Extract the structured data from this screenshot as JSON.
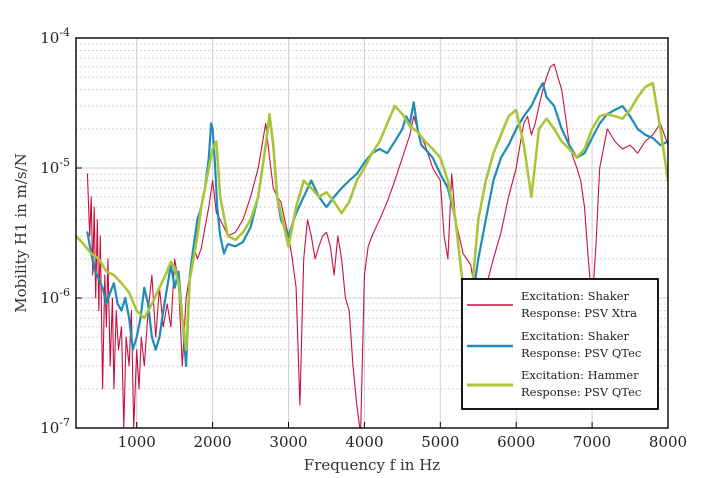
{
  "chart_data": {
    "type": "line",
    "xlabel": "Frequency f in Hz",
    "ylabel": "Mobility H1 in m/s/N",
    "xlim": [
      200,
      8000
    ],
    "ylim": [
      1e-07,
      0.0001
    ],
    "y_scale": "log",
    "grid": true,
    "legend_placement": "bottom-right",
    "x_ticks": [
      1000,
      2000,
      3000,
      4000,
      5000,
      6000,
      7000,
      8000
    ],
    "y_ticks": [
      {
        "value": 1e-07,
        "base": "10",
        "exp": "-7"
      },
      {
        "value": 1e-06,
        "base": "10",
        "exp": "-6"
      },
      {
        "value": 1e-05,
        "base": "10",
        "exp": "-5"
      },
      {
        "value": 0.0001,
        "base": "10",
        "exp": "-4"
      }
    ],
    "series": [
      {
        "line1": "Excitation: Shaker",
        "line2": "Response: PSV Xtra",
        "color": "#c8103e",
        "width": 1.1,
        "x": [
          350,
          380,
          400,
          420,
          440,
          460,
          480,
          500,
          520,
          550,
          580,
          600,
          620,
          650,
          680,
          700,
          730,
          760,
          800,
          830,
          860,
          900,
          930,
          960,
          1000,
          1030,
          1060,
          1100,
          1150,
          1200,
          1250,
          1300,
          1350,
          1400,
          1450,
          1500,
          1550,
          1600,
          1650,
          1700,
          1750,
          1800,
          1850,
          1900,
          1950,
          2000,
          2050,
          2100,
          2150,
          2200,
          2300,
          2400,
          2500,
          2600,
          2700,
          2750,
          2800,
          2850,
          2900,
          2950,
          3000,
          3050,
          3100,
          3150,
          3200,
          3250,
          3300,
          3350,
          3400,
          3450,
          3500,
          3550,
          3600,
          3650,
          3700,
          3750,
          3800,
          3850,
          3900,
          3950,
          4000,
          4050,
          4100,
          4200,
          4300,
          4400,
          4500,
          4600,
          4650,
          4700,
          4800,
          4900,
          5000,
          5050,
          5100,
          5150,
          5200,
          5300,
          5400,
          5500,
          5600,
          5700,
          5800,
          5900,
          6000,
          6050,
          6100,
          6150,
          6200,
          6250,
          6300,
          6350,
          6400,
          6450,
          6500,
          6550,
          6600,
          6650,
          6700,
          6750,
          6800,
          6850,
          6900,
          6950,
          7000,
          7050,
          7100,
          7200,
          7300,
          7400,
          7500,
          7600,
          7700,
          7800,
          7900,
          8000
        ],
        "y": [
          9e-06,
          3e-06,
          6e-06,
          1.5e-06,
          5e-06,
          1e-06,
          4e-06,
          8e-07,
          3e-06,
          2e-07,
          1.5e-06,
          6e-07,
          2e-06,
          3e-07,
          1e-06,
          2e-07,
          8e-07,
          4e-07,
          6e-07,
          1e-07,
          5e-07,
          3e-07,
          8e-07,
          1e-07,
          4e-07,
          2e-07,
          5e-07,
          3e-07,
          8e-07,
          1.5e-06,
          5e-07,
          1.2e-06,
          6e-07,
          9e-07,
          6e-07,
          2e-06,
          1.3e-06,
          3e-07,
          1e-06,
          1.5e-06,
          2.5e-06,
          2e-06,
          2.4e-06,
          3.5e-06,
          5e-06,
          8e-06,
          4.5e-06,
          4e-06,
          3.5e-06,
          3e-06,
          3.2e-06,
          4e-06,
          6e-06,
          1e-05,
          2.2e-05,
          1.2e-05,
          7e-06,
          6e-06,
          5.5e-06,
          4e-06,
          3e-06,
          2e-06,
          1.2e-06,
          1.5e-07,
          2e-06,
          4e-06,
          3e-06,
          2e-06,
          2.5e-06,
          3e-06,
          3.2e-06,
          2.5e-06,
          1.5e-06,
          3e-06,
          2e-06,
          1e-06,
          8e-07,
          3e-07,
          1.5e-07,
          9e-08,
          1.5e-06,
          2.5e-06,
          3e-06,
          4e-06,
          5.5e-06,
          8e-06,
          1.2e-05,
          1.8e-05,
          2.5e-05,
          2e-05,
          1.5e-05,
          1e-05,
          8e-06,
          3e-06,
          2e-06,
          9e-06,
          4e-06,
          2.2e-06,
          1.8e-06,
          8e-07,
          1.2e-06,
          2e-06,
          3.2e-06,
          6e-06,
          1e-05,
          1.5e-05,
          2.2e-05,
          2.5e-05,
          1.8e-05,
          2.2e-05,
          3e-05,
          4e-05,
          5e-05,
          6e-05,
          6.3e-05,
          5e-05,
          4e-05,
          2.5e-05,
          1.5e-05,
          1.2e-05,
          1e-05,
          8e-06,
          5e-06,
          2e-06,
          9e-07,
          2.5e-06,
          1e-05,
          2e-05,
          1.6e-05,
          1.4e-05,
          1.5e-05,
          1.3e-05,
          1.6e-05,
          1.8e-05,
          2.2e-05,
          1.5e-05
        ]
      },
      {
        "line1": "Excitation: Shaker",
        "line2": "Response: PSV QTec",
        "color": "#1f8bb8",
        "width": 2.2,
        "x": [
          350,
          400,
          450,
          500,
          550,
          600,
          650,
          700,
          750,
          800,
          850,
          900,
          950,
          1000,
          1050,
          1100,
          1150,
          1200,
          1250,
          1300,
          1350,
          1400,
          1450,
          1500,
          1550,
          1600,
          1650,
          1700,
          1750,
          1800,
          1850,
          1900,
          1950,
          1980,
          2000,
          2030,
          2060,
          2100,
          2150,
          2200,
          2300,
          2400,
          2500,
          2600,
          2700,
          2750,
          2800,
          2850,
          2900,
          3000,
          3100,
          3200,
          3300,
          3400,
          3500,
          3600,
          3700,
          3800,
          3900,
          4000,
          4100,
          4200,
          4300,
          4400,
          4500,
          4550,
          4600,
          4650,
          4700,
          4750,
          4800,
          4900,
          5000,
          5100,
          5200,
          5300,
          5400,
          5500,
          5600,
          5700,
          5800,
          5900,
          6000,
          6100,
          6200,
          6300,
          6350,
          6400,
          6500,
          6600,
          6700,
          6800,
          6900,
          7000,
          7100,
          7200,
          7300,
          7400,
          7500,
          7600,
          7700,
          7800,
          7900,
          8000
        ],
        "y": [
          3.2e-06,
          2.2e-06,
          1.6e-06,
          1.4e-06,
          1.2e-06,
          9e-07,
          1.1e-06,
          1.3e-06,
          9e-07,
          8e-07,
          1e-06,
          7e-07,
          4e-07,
          5e-07,
          7e-07,
          1.2e-06,
          9e-07,
          5e-07,
          4e-07,
          5e-07,
          8e-07,
          1.2e-06,
          1.8e-06,
          1.2e-06,
          1.6e-06,
          7e-07,
          3e-07,
          1.5e-06,
          2.5e-06,
          4e-06,
          5e-06,
          7e-06,
          1.2e-05,
          2.2e-05,
          2e-05,
          1.1e-05,
          5e-06,
          3e-06,
          2.2e-06,
          2.6e-06,
          2.5e-06,
          2.7e-06,
          3.5e-06,
          6e-06,
          1.5e-05,
          2.5e-05,
          1.5e-05,
          6e-06,
          4e-06,
          3e-06,
          4.5e-06,
          6e-06,
          8e-06,
          6e-06,
          5e-06,
          6e-06,
          7e-06,
          8e-06,
          9e-06,
          1.1e-05,
          1.3e-05,
          1.4e-05,
          1.3e-05,
          1.6e-05,
          2e-05,
          2.5e-05,
          2.2e-05,
          3.2e-05,
          2e-05,
          1.5e-05,
          1.4e-05,
          1.2e-05,
          9e-06,
          7e-06,
          4e-06,
          1.2e-06,
          8e-07,
          2e-06,
          4e-06,
          8e-06,
          1.2e-05,
          1.5e-05,
          2e-05,
          2.5e-05,
          3e-05,
          4e-05,
          4.5e-05,
          3.5e-05,
          3e-05,
          2e-05,
          1.5e-05,
          1.2e-05,
          1.3e-05,
          1.7e-05,
          2.2e-05,
          2.6e-05,
          2.8e-05,
          3e-05,
          2.5e-05,
          2e-05,
          1.8e-05,
          1.7e-05,
          1.5e-05,
          1.6e-05
        ]
      },
      {
        "line1": "Excitation: Hammer",
        "line2": "Response: PSV QTec",
        "color": "#a9c63a",
        "width": 2.6,
        "x": [
          200,
          300,
          400,
          500,
          600,
          700,
          800,
          900,
          1000,
          1100,
          1200,
          1300,
          1400,
          1450,
          1500,
          1550,
          1600,
          1650,
          1700,
          1750,
          1800,
          1850,
          1900,
          1950,
          2000,
          2050,
          2100,
          2200,
          2300,
          2400,
          2500,
          2600,
          2700,
          2750,
          2800,
          2850,
          2900,
          3000,
          3100,
          3200,
          3300,
          3400,
          3500,
          3600,
          3700,
          3800,
          3900,
          4000,
          4100,
          4200,
          4300,
          4400,
          4500,
          4600,
          4700,
          4800,
          4900,
          5000,
          5100,
          5200,
          5300,
          5350,
          5400,
          5500,
          5600,
          5700,
          5800,
          5900,
          6000,
          6100,
          6200,
          6300,
          6400,
          6500,
          6600,
          6700,
          6800,
          6900,
          7000,
          7100,
          7200,
          7300,
          7400,
          7500,
          7600,
          7700,
          7800,
          7900,
          8000
        ],
        "y": [
          3e-06,
          2.6e-06,
          2.2e-06,
          2e-06,
          1.6e-06,
          1.5e-06,
          1.3e-06,
          1.1e-06,
          8e-07,
          7e-07,
          9e-07,
          1.2e-06,
          1.6e-06,
          1.9e-06,
          1.7e-06,
          1.3e-06,
          7e-07,
          4e-07,
          1.4e-06,
          2e-06,
          3e-06,
          5e-06,
          7e-06,
          1e-05,
          1.4e-05,
          1.6e-05,
          6e-06,
          3e-06,
          2.8e-06,
          3.2e-06,
          4e-06,
          6e-06,
          1.5e-05,
          2.6e-05,
          1.5e-05,
          6e-06,
          4.5e-06,
          2.5e-06,
          5e-06,
          8e-06,
          7e-06,
          6e-06,
          6.5e-06,
          5.5e-06,
          4.5e-06,
          5.5e-06,
          8e-06,
          1e-05,
          1.3e-05,
          1.6e-05,
          2.2e-05,
          3e-05,
          2.6e-05,
          2.1e-05,
          1.9e-05,
          1.6e-05,
          1.4e-05,
          1.2e-05,
          8e-06,
          4e-06,
          1.2e-06,
          5e-07,
          9e-07,
          4e-06,
          8e-06,
          1.3e-05,
          1.8e-05,
          2.5e-05,
          2.8e-05,
          1.5e-05,
          6e-06,
          2e-05,
          2.4e-05,
          2e-05,
          1.6e-05,
          1.4e-05,
          1.2e-05,
          1.4e-05,
          2e-05,
          2.5e-05,
          2.6e-05,
          2.5e-05,
          2.4e-05,
          2.8e-05,
          3.5e-05,
          4.2e-05,
          4.5e-05,
          2e-05,
          8e-06
        ]
      }
    ]
  }
}
